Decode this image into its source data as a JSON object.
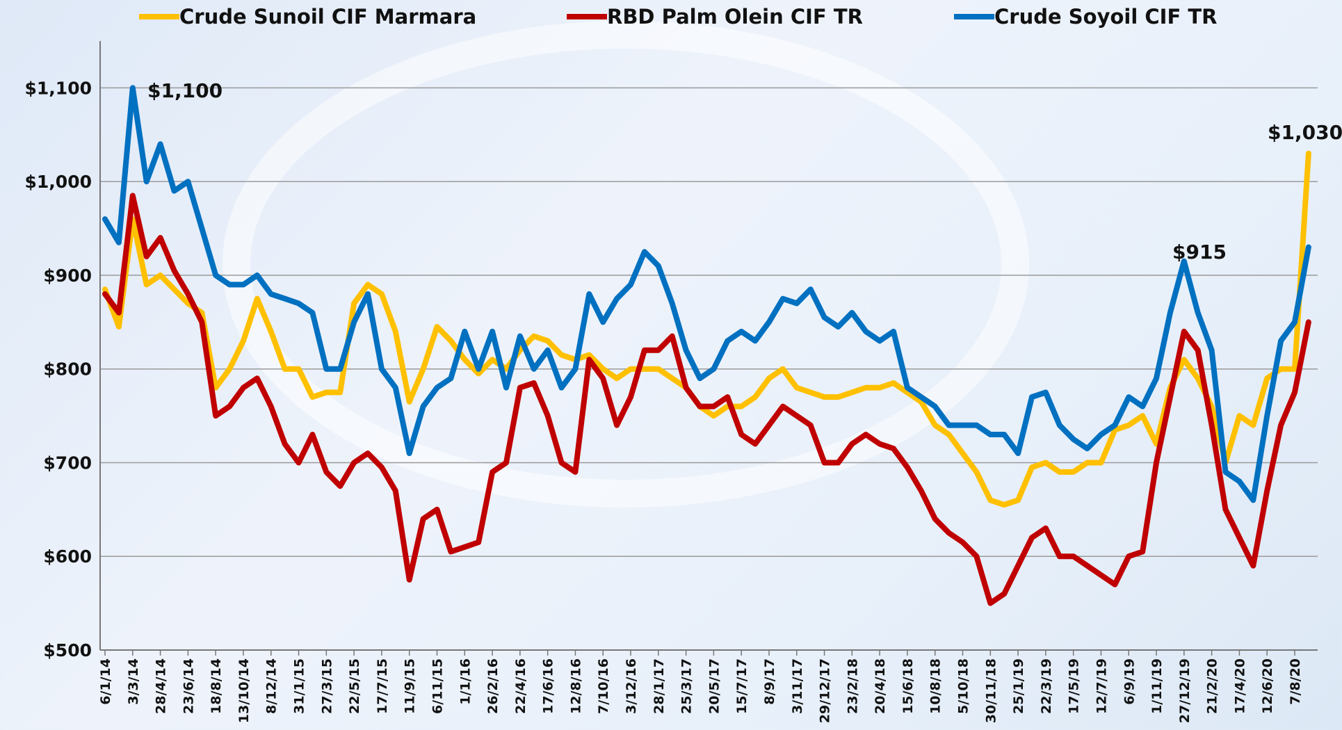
{
  "chart_data": {
    "type": "line",
    "categories": [
      "6/1/14",
      null,
      "3/3/14",
      null,
      "28/4/14",
      null,
      "23/6/14",
      null,
      "18/8/14",
      null,
      "13/10/14",
      null,
      "8/12/14",
      null,
      "31/1/15",
      null,
      "27/3/15",
      null,
      "22/5/15",
      null,
      "17/7/15",
      null,
      "11/9/15",
      null,
      "6/11/15",
      null,
      "1/1/16",
      null,
      "26/2/16",
      null,
      "22/4/16",
      null,
      "17/6/16",
      null,
      "12/8/16",
      null,
      "7/10/16",
      null,
      "3/12/16",
      null,
      "28/1/17",
      null,
      "25/3/17",
      null,
      "20/5/17",
      null,
      "15/7/17",
      null,
      "8/9/17",
      null,
      "3/11/17",
      null,
      "29/12/17",
      null,
      "23/2/18",
      null,
      "20/4/18",
      null,
      "15/6/18",
      null,
      "10/8/18",
      null,
      "5/10/18",
      null,
      "30/11/18",
      null,
      "25/1/19",
      null,
      "22/3/19",
      null,
      "17/5/19",
      null,
      "12/7/19",
      null,
      "6/9/19",
      null,
      "1/11/19",
      null,
      "27/12/19",
      null,
      "21/2/20",
      null,
      "17/4/20",
      null,
      "12/6/20",
      null,
      "7/8/20",
      null
    ],
    "series": [
      {
        "name": "Crude Sunoil CIF Marmara",
        "color": "#FFC000",
        "values": [
          885,
          845,
          960,
          890,
          900,
          885,
          870,
          860,
          780,
          800,
          830,
          875,
          840,
          800,
          800,
          770,
          775,
          775,
          870,
          890,
          880,
          840,
          765,
          800,
          845,
          830,
          810,
          795,
          810,
          800,
          820,
          835,
          830,
          815,
          810,
          815,
          800,
          790,
          800,
          800,
          800,
          790,
          780,
          760,
          750,
          760,
          760,
          770,
          790,
          800,
          780,
          775,
          770,
          770,
          775,
          780,
          780,
          785,
          775,
          765,
          740,
          730,
          710,
          690,
          660,
          655,
          660,
          695,
          700,
          690,
          690,
          700,
          700,
          735,
          740,
          750,
          720,
          780,
          810,
          790,
          760,
          700,
          750,
          740,
          790,
          800,
          800,
          1030
        ]
      },
      {
        "name": "RBD Palm Olein CIF TR",
        "color": "#C00000",
        "values": [
          880,
          860,
          985,
          920,
          940,
          905,
          880,
          850,
          750,
          760,
          780,
          790,
          760,
          720,
          700,
          730,
          690,
          675,
          700,
          710,
          695,
          670,
          575,
          640,
          650,
          605,
          610,
          615,
          690,
          700,
          780,
          785,
          750,
          700,
          690,
          810,
          790,
          740,
          770,
          820,
          820,
          835,
          780,
          760,
          760,
          770,
          730,
          720,
          740,
          760,
          750,
          740,
          700,
          700,
          720,
          730,
          720,
          715,
          695,
          670,
          640,
          625,
          615,
          600,
          550,
          560,
          590,
          620,
          630,
          600,
          600,
          590,
          580,
          570,
          600,
          605,
          700,
          770,
          840,
          820,
          740,
          650,
          620,
          590,
          670,
          740,
          775,
          850
        ]
      },
      {
        "name": "Crude Soyoil CIF TR",
        "color": "#0070C0",
        "values": [
          960,
          935,
          1100,
          1000,
          1040,
          990,
          1000,
          950,
          900,
          890,
          890,
          900,
          880,
          875,
          870,
          860,
          800,
          800,
          850,
          880,
          800,
          780,
          710,
          760,
          780,
          790,
          840,
          800,
          840,
          780,
          835,
          800,
          820,
          780,
          800,
          880,
          850,
          875,
          890,
          925,
          910,
          870,
          820,
          790,
          800,
          830,
          840,
          830,
          850,
          875,
          870,
          885,
          855,
          845,
          860,
          840,
          830,
          840,
          780,
          770,
          760,
          740,
          740,
          740,
          730,
          730,
          710,
          770,
          775,
          740,
          725,
          715,
          730,
          740,
          770,
          760,
          790,
          860,
          915,
          860,
          820,
          690,
          680,
          660,
          750,
          830,
          850,
          930
        ]
      }
    ],
    "annotations": [
      "$1,100",
      "$915",
      "$1,030"
    ],
    "ylim": [
      500,
      1150
    ],
    "yticks": [
      {
        "value": 500,
        "label": "$500"
      },
      {
        "value": 600,
        "label": "$600"
      },
      {
        "value": 700,
        "label": "$700"
      },
      {
        "value": 800,
        "label": "$800"
      },
      {
        "value": 900,
        "label": "$900"
      },
      {
        "value": 1000,
        "label": "$1,000"
      },
      {
        "value": 1100,
        "label": "$1,100"
      }
    ],
    "grid": true
  }
}
